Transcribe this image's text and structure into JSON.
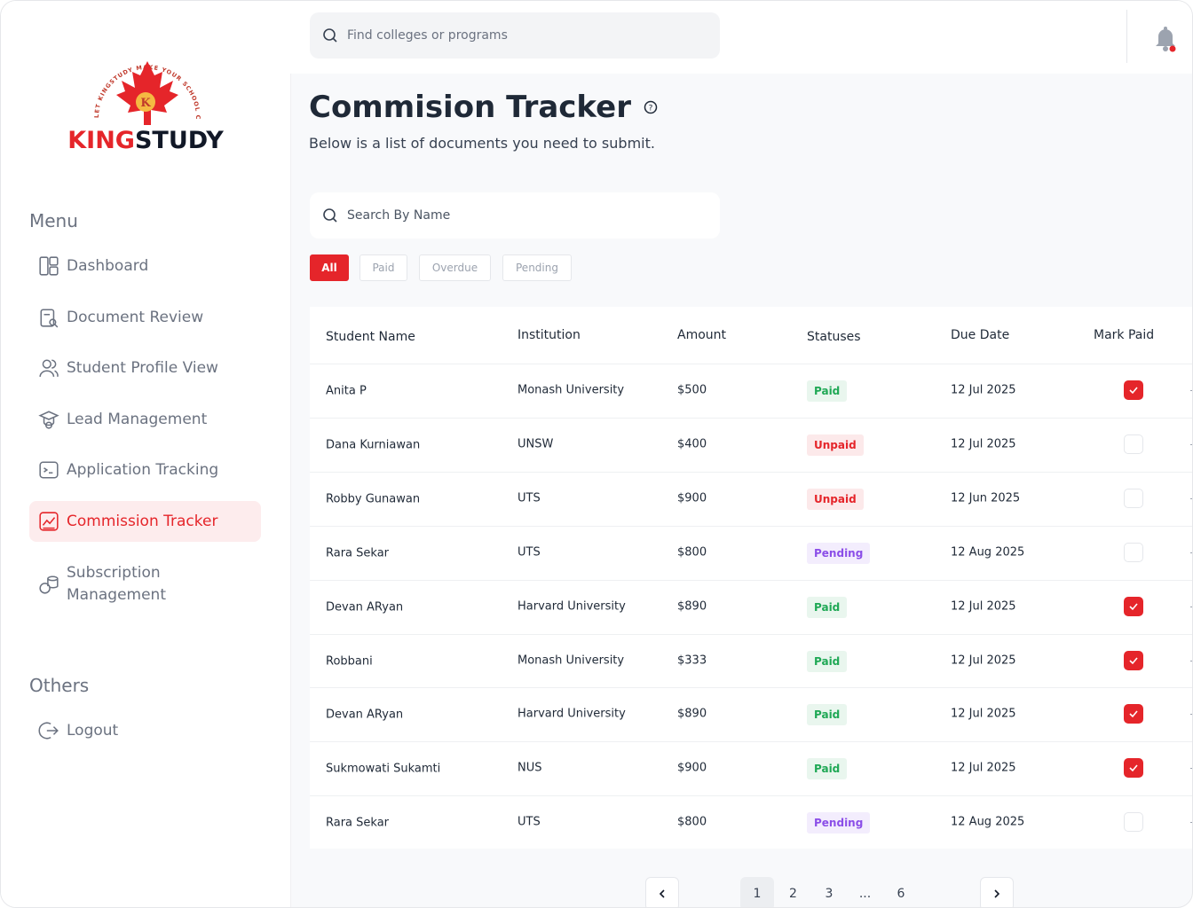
{
  "logo": {
    "brand_red": "KING",
    "brand_dark": "STUDY",
    "ring_text": "LET KINGSTUDY MAKE YOUR SCHOOL CHOICE SIMPLE"
  },
  "header": {
    "search_placeholder": "Find colleges or programs"
  },
  "sidebar": {
    "menu_heading": "Menu",
    "menu": [
      "Dashboard",
      "Document Review",
      "Student Profile View",
      "Lead Management",
      "Application Tracking",
      "Commission Tracker",
      "Subscription Management"
    ],
    "active_index": 5,
    "others_heading": "Others",
    "others": [
      "Logout"
    ]
  },
  "page": {
    "title": "Commision Tracker",
    "subtitle": "Below is a list of documents you need to submit.",
    "search_placeholder": "Search By Name",
    "filters": [
      "All",
      "Paid",
      "Overdue",
      "Pending"
    ],
    "active_filter": 0
  },
  "table": {
    "columns": [
      "Student Name",
      "Institution",
      "Amount",
      "Statuses",
      "Due Date",
      "Mark Paid"
    ],
    "rows": [
      {
        "student": "Anita P",
        "institution": "Monash University",
        "amount": "$500",
        "status": "Paid",
        "status_color": "#1fa855",
        "due_date": "12 Jul 2025",
        "mark_paid": true
      },
      {
        "student": "Dana Kurniawan",
        "institution": "UNSW",
        "amount": "$400",
        "status": "Unpaid",
        "status_color": "#e5252a",
        "due_date": "12 Jul 2025",
        "mark_paid": false
      },
      {
        "student": "Robby Gunawan",
        "institution": "UTS",
        "amount": "$900",
        "status": "Unpaid",
        "status_color": "#e5252a",
        "due_date": "12 Jun 2025",
        "mark_paid": false
      },
      {
        "student": "Rara Sekar",
        "institution": "UTS",
        "amount": "$800",
        "status": "Pending",
        "status_color": "#8b4ee8",
        "due_date": "12 Aug 2025",
        "mark_paid": false
      },
      {
        "student": "Devan ARyan",
        "institution": "Harvard University",
        "amount": "$890",
        "status": "Paid",
        "status_color": "#1fa855",
        "due_date": "12 Jul 2025",
        "mark_paid": true
      },
      {
        "student": "Robbani",
        "institution": "Monash University",
        "amount": "$333",
        "status": "Paid",
        "status_color": "#1fa855",
        "due_date": "12 Jul 2025",
        "mark_paid": true
      },
      {
        "student": "Devan ARyan",
        "institution": "Harvard University",
        "amount": "$890",
        "status": "Paid",
        "status_color": "#1fa855",
        "due_date": "12 Jul 2025",
        "mark_paid": true
      },
      {
        "student": "Sukmowati Sukamti",
        "institution": "NUS",
        "amount": "$900",
        "status": "Paid",
        "status_color": "#1fa855",
        "due_date": "12 Jul 2025",
        "mark_paid": true
      },
      {
        "student": "Rara Sekar",
        "institution": "UTS",
        "amount": "$800",
        "status": "Pending",
        "status_color": "#8b4ee8",
        "due_date": "12 Aug 2025",
        "mark_paid": false
      }
    ]
  },
  "pagination": {
    "pages": [
      "1",
      "2",
      "3",
      "...",
      "6"
    ],
    "current_index": 0
  }
}
